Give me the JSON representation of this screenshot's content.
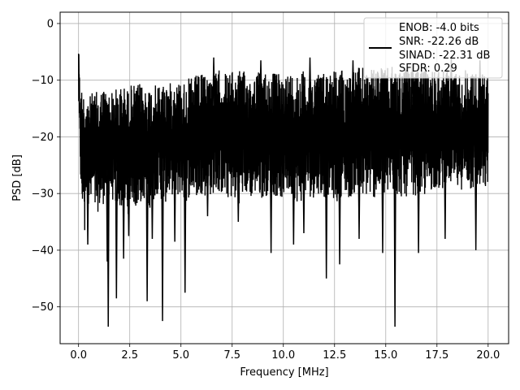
{
  "chart_data": {
    "type": "line",
    "title": "",
    "xlabel": "Frequency [MHz]",
    "ylabel": "PSD [dB]",
    "xlim": [
      -0.9,
      21.0
    ],
    "ylim": [
      -56.5,
      2.0
    ],
    "xticks": [
      0.0,
      2.5,
      5.0,
      7.5,
      10.0,
      12.5,
      15.0,
      17.5,
      20.0
    ],
    "xtick_labels": [
      "0.0",
      "2.5",
      "5.0",
      "7.5",
      "10.0",
      "12.5",
      "15.0",
      "17.5",
      "20.0"
    ],
    "yticks": [
      0,
      -10,
      -20,
      -30,
      -40,
      -50
    ],
    "ytick_labels": [
      "0",
      "−10",
      "−20",
      "−30",
      "−40",
      "−50"
    ],
    "grid": true,
    "legend_position": "top-right",
    "line_color": "#000000",
    "series": [
      {
        "x": [
          0.0,
          0.02,
          0.04,
          0.06,
          0.1,
          0.15,
          0.2,
          0.25,
          0.3,
          0.35,
          0.4,
          0.5,
          0.6,
          0.7,
          0.8,
          1.0,
          1.2,
          1.4,
          1.6,
          1.8,
          2.0,
          2.2,
          2.4,
          2.6,
          2.8,
          3.0,
          3.2,
          3.4,
          3.6,
          3.8,
          4.0,
          4.2,
          4.5,
          4.8,
          5.0,
          5.2,
          5.5,
          5.8,
          6.0,
          6.3,
          6.6,
          6.9,
          7.2,
          7.5,
          7.8,
          8.1,
          8.4,
          8.7,
          9.0,
          9.3,
          9.6,
          9.9,
          10.2,
          10.5,
          10.8,
          11.1,
          11.4,
          11.7,
          12.0,
          12.3,
          12.6,
          12.9,
          13.2,
          13.5,
          13.8,
          14.1,
          14.4,
          14.7,
          15.0,
          15.3,
          15.6,
          15.9,
          16.2,
          16.5,
          16.8,
          17.1,
          17.4,
          17.7,
          18.0,
          18.3,
          18.6,
          18.9,
          19.2,
          19.5,
          19.8,
          20.0
        ],
        "upper": [
          0.0,
          -3.0,
          -8.0,
          -10.0,
          -12.0,
          -11.0,
          -13.0,
          -12.0,
          -14.0,
          -12.0,
          -11.5,
          -13.0,
          -12.5,
          -12.0,
          -12.0,
          -12.0,
          -11.0,
          -12.0,
          -12.0,
          -11.5,
          -11.0,
          -11.0,
          -11.5,
          -10.5,
          -11.0,
          -10.5,
          -11.0,
          -11.0,
          -10.5,
          -11.0,
          -10.5,
          -10.0,
          -10.5,
          -10.0,
          -10.0,
          -10.0,
          -9.5,
          -9.0,
          -9.0,
          -8.5,
          -9.0,
          -8.0,
          -8.5,
          -8.5,
          -8.0,
          -8.5,
          -9.0,
          -8.5,
          -8.0,
          -8.5,
          -8.5,
          -9.0,
          -8.5,
          -8.5,
          -8.0,
          -8.5,
          -8.5,
          -8.0,
          -8.5,
          -7.5,
          -8.0,
          -8.0,
          -8.5,
          -8.0,
          -7.5,
          -8.0,
          -8.0,
          -7.5,
          -8.0,
          -7.5,
          -8.0,
          -7.5,
          -8.0,
          -8.0,
          -7.5,
          -7.5,
          -8.0,
          -7.5,
          -8.0,
          -8.0,
          -8.5,
          -8.0,
          -8.0,
          -9.0,
          -8.5,
          -9.0
        ],
        "lower": [
          -18.0,
          -12.0,
          -20.0,
          -22.0,
          -28.0,
          -32.0,
          -35.0,
          -30.0,
          -39.0,
          -28.0,
          -31.0,
          -32.0,
          -33.0,
          -30.0,
          -34.0,
          -33.0,
          -32.0,
          -30.0,
          -31.0,
          -32.0,
          -33.0,
          -32.0,
          -34.0,
          -31.0,
          -33.0,
          -32.0,
          -31.0,
          -33.0,
          -32.0,
          -30.0,
          -31.0,
          -32.0,
          -30.0,
          -31.0,
          -30.0,
          -32.0,
          -30.0,
          -31.0,
          -30.0,
          -31.0,
          -30.0,
          -30.0,
          -31.0,
          -31.0,
          -32.0,
          -30.0,
          -31.0,
          -30.0,
          -31.0,
          -30.0,
          -30.5,
          -31.0,
          -30.0,
          -31.0,
          -32.0,
          -30.0,
          -31.0,
          -30.0,
          -31.0,
          -30.0,
          -32.0,
          -30.0,
          -31.0,
          -30.0,
          -31.0,
          -30.5,
          -31.0,
          -30.0,
          -31.0,
          -30.0,
          -30.5,
          -31.0,
          -30.0,
          -30.5,
          -31.0,
          -30.0,
          -29.0,
          -30.0,
          -28.0,
          -29.0,
          -30.0,
          -28.0,
          -30.0,
          -29.0,
          -30.0,
          -29.0
        ]
      }
    ],
    "dips": [
      {
        "x": 1.45,
        "y": -53.5
      },
      {
        "x": 1.85,
        "y": -48.5
      },
      {
        "x": 2.2,
        "y": -41.5
      },
      {
        "x": 3.35,
        "y": -49.0
      },
      {
        "x": 4.1,
        "y": -52.5
      },
      {
        "x": 5.2,
        "y": -47.5
      },
      {
        "x": 1.4,
        "y": -42.0
      },
      {
        "x": 0.45,
        "y": -39.0
      },
      {
        "x": 2.45,
        "y": -37.5
      },
      {
        "x": 3.6,
        "y": -38.0
      },
      {
        "x": 4.7,
        "y": -38.5
      },
      {
        "x": 6.3,
        "y": -34.0
      },
      {
        "x": 7.8,
        "y": -35.0
      },
      {
        "x": 9.4,
        "y": -40.5
      },
      {
        "x": 10.5,
        "y": -39.0
      },
      {
        "x": 11.0,
        "y": -37.0
      },
      {
        "x": 12.1,
        "y": -45.0
      },
      {
        "x": 12.75,
        "y": -42.5
      },
      {
        "x": 13.7,
        "y": -38.0
      },
      {
        "x": 14.85,
        "y": -40.5
      },
      {
        "x": 15.45,
        "y": -53.5
      },
      {
        "x": 16.6,
        "y": -40.5
      },
      {
        "x": 17.9,
        "y": -38.0
      },
      {
        "x": 19.4,
        "y": -40.0
      }
    ],
    "spikes": [
      {
        "x": 6.6,
        "y": -6.0
      },
      {
        "x": 8.9,
        "y": -6.5
      },
      {
        "x": 11.3,
        "y": -6.0
      },
      {
        "x": 13.4,
        "y": -6.5
      },
      {
        "x": 16.3,
        "y": -7.0
      },
      {
        "x": 18.2,
        "y": -6.0
      },
      {
        "x": 19.6,
        "y": -6.5
      }
    ],
    "legend": {
      "lines": [
        "ENOB: -4.0 bits",
        "SNR: -22.26 dB",
        "SINAD: -22.31 dB",
        "SFDR: 0.29"
      ]
    }
  }
}
